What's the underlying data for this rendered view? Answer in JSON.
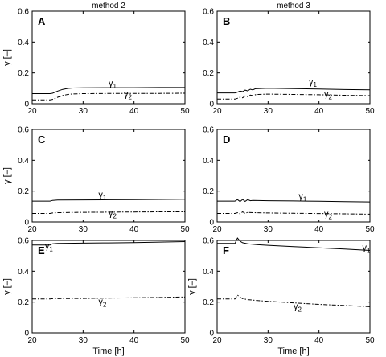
{
  "column_titles": [
    "method 2",
    "method 3"
  ],
  "chart_data": [
    {
      "type": "line",
      "panel": "A",
      "xlim": [
        20,
        50
      ],
      "ylim": [
        0,
        0.6
      ],
      "xticks": [
        20,
        30,
        40,
        50
      ],
      "yticks": [
        0,
        0.2,
        0.4,
        0.6
      ],
      "ylabel": "γ [–]",
      "xlabel": "",
      "series": [
        {
          "name": "γ1",
          "style": "solid",
          "label_at": [
            35,
            0.115
          ],
          "x": [
            20,
            23.5,
            24,
            25,
            26,
            27,
            28,
            30,
            35,
            40,
            45,
            50
          ],
          "y": [
            0.065,
            0.065,
            0.068,
            0.082,
            0.093,
            0.099,
            0.102,
            0.103,
            0.104,
            0.104,
            0.105,
            0.105
          ]
        },
        {
          "name": "γ2",
          "style": "dashdot",
          "label_at": [
            38,
            0.045
          ],
          "x": [
            20,
            23.5,
            24,
            25,
            26,
            27,
            28,
            30,
            35,
            40,
            45,
            50
          ],
          "y": [
            0.025,
            0.025,
            0.028,
            0.042,
            0.053,
            0.06,
            0.063,
            0.065,
            0.066,
            0.067,
            0.067,
            0.068
          ]
        }
      ]
    },
    {
      "type": "line",
      "panel": "B",
      "xlim": [
        20,
        50
      ],
      "ylim": [
        0,
        0.6
      ],
      "xticks": [
        20,
        30,
        40,
        50
      ],
      "yticks": [
        0,
        0.2,
        0.4,
        0.6
      ],
      "ylabel": "",
      "xlabel": "",
      "series": [
        {
          "name": "γ1",
          "style": "solid",
          "label_at": [
            38,
            0.125
          ],
          "x": [
            20,
            23.5,
            24,
            24.5,
            25,
            25.5,
            26,
            26.5,
            27,
            27.5,
            28,
            30,
            35,
            40,
            45,
            50
          ],
          "y": [
            0.07,
            0.07,
            0.075,
            0.082,
            0.078,
            0.088,
            0.083,
            0.094,
            0.09,
            0.097,
            0.098,
            0.1,
            0.098,
            0.095,
            0.092,
            0.09
          ]
        },
        {
          "name": "γ2",
          "style": "dashdot",
          "label_at": [
            41,
            0.045
          ],
          "x": [
            20,
            23.5,
            24,
            24.5,
            25,
            25.5,
            26,
            26.5,
            27,
            27.5,
            28,
            30,
            35,
            40,
            45,
            50
          ],
          "y": [
            0.03,
            0.03,
            0.035,
            0.042,
            0.038,
            0.05,
            0.046,
            0.056,
            0.052,
            0.058,
            0.06,
            0.062,
            0.06,
            0.058,
            0.055,
            0.052
          ]
        }
      ]
    },
    {
      "type": "line",
      "panel": "C",
      "xlim": [
        20,
        50
      ],
      "ylim": [
        0,
        0.6
      ],
      "xticks": [
        20,
        30,
        40,
        50
      ],
      "yticks": [
        0,
        0.2,
        0.4,
        0.6
      ],
      "ylabel": "γ [–]",
      "xlabel": "",
      "series": [
        {
          "name": "γ1",
          "style": "solid",
          "label_at": [
            33,
            0.16
          ],
          "x": [
            20,
            23.5,
            24,
            25,
            30,
            35,
            40,
            45,
            50
          ],
          "y": [
            0.135,
            0.135,
            0.14,
            0.142,
            0.143,
            0.144,
            0.145,
            0.146,
            0.147
          ]
        },
        {
          "name": "γ2",
          "style": "dashdot",
          "label_at": [
            35,
            0.04
          ],
          "x": [
            20,
            23.5,
            24,
            25,
            30,
            35,
            40,
            45,
            50
          ],
          "y": [
            0.055,
            0.055,
            0.058,
            0.06,
            0.062,
            0.063,
            0.064,
            0.065,
            0.065
          ]
        }
      ]
    },
    {
      "type": "line",
      "panel": "D",
      "xlim": [
        20,
        50
      ],
      "ylim": [
        0,
        0.6
      ],
      "xticks": [
        20,
        30,
        40,
        50
      ],
      "yticks": [
        0,
        0.2,
        0.4,
        0.6
      ],
      "ylabel": "",
      "xlabel": "",
      "series": [
        {
          "name": "γ1",
          "style": "solid",
          "label_at": [
            36,
            0.15
          ],
          "x": [
            20,
            23.5,
            24,
            24.5,
            25,
            25.5,
            26,
            26.5,
            27,
            30,
            35,
            40,
            45,
            50
          ],
          "y": [
            0.135,
            0.135,
            0.145,
            0.132,
            0.146,
            0.133,
            0.145,
            0.138,
            0.14,
            0.138,
            0.136,
            0.134,
            0.132,
            0.13
          ]
        },
        {
          "name": "γ2",
          "style": "dashdot",
          "label_at": [
            41,
            0.035
          ],
          "x": [
            20,
            23.5,
            24,
            24.5,
            25,
            25.5,
            26,
            27,
            30,
            35,
            40,
            45,
            50
          ],
          "y": [
            0.055,
            0.055,
            0.06,
            0.052,
            0.065,
            0.055,
            0.062,
            0.06,
            0.058,
            0.056,
            0.054,
            0.052,
            0.05
          ]
        }
      ]
    },
    {
      "type": "line",
      "panel": "E",
      "xlim": [
        20,
        50
      ],
      "ylim": [
        0,
        0.6
      ],
      "xticks": [
        20,
        30,
        40,
        50
      ],
      "yticks": [
        0,
        0.2,
        0.4,
        0.6
      ],
      "ylabel": "γ [–]",
      "xlabel": "Time [h]",
      "series": [
        {
          "name": "γ1",
          "style": "solid",
          "label_at": [
            22.5,
            0.545
          ],
          "x": [
            20,
            23.5,
            24,
            25,
            30,
            35,
            40,
            45,
            50
          ],
          "y": [
            0.57,
            0.57,
            0.578,
            0.58,
            0.582,
            0.584,
            0.586,
            0.589,
            0.592
          ]
        },
        {
          "name": "γ2",
          "style": "dashdot",
          "label_at": [
            33,
            0.185
          ],
          "x": [
            20,
            23.5,
            24,
            30,
            35,
            40,
            45,
            50
          ],
          "y": [
            0.22,
            0.22,
            0.222,
            0.224,
            0.226,
            0.228,
            0.23,
            0.233
          ]
        }
      ]
    },
    {
      "type": "line",
      "panel": "F",
      "xlim": [
        20,
        50
      ],
      "ylim": [
        0,
        0.6
      ],
      "xticks": [
        20,
        30,
        40,
        50
      ],
      "yticks": [
        0,
        0.2,
        0.4,
        0.6
      ],
      "ylabel": "γ [–]",
      "xlabel": "Time [h]",
      "series": [
        {
          "name": "γ1",
          "style": "solid",
          "label_at": [
            48.5,
            0.535
          ],
          "x": [
            20,
            23.5,
            24,
            24.5,
            25,
            26,
            28,
            30,
            35,
            40,
            45,
            50
          ],
          "y": [
            0.58,
            0.58,
            0.615,
            0.595,
            0.585,
            0.578,
            0.572,
            0.568,
            0.56,
            0.552,
            0.544,
            0.535
          ]
        },
        {
          "name": "γ2",
          "style": "dashdot",
          "label_at": [
            35,
            0.155
          ],
          "x": [
            20,
            23.5,
            24,
            24.5,
            25,
            26,
            28,
            30,
            35,
            40,
            45,
            50
          ],
          "y": [
            0.22,
            0.22,
            0.245,
            0.232,
            0.222,
            0.216,
            0.21,
            0.205,
            0.195,
            0.185,
            0.178,
            0.17
          ]
        }
      ]
    }
  ]
}
